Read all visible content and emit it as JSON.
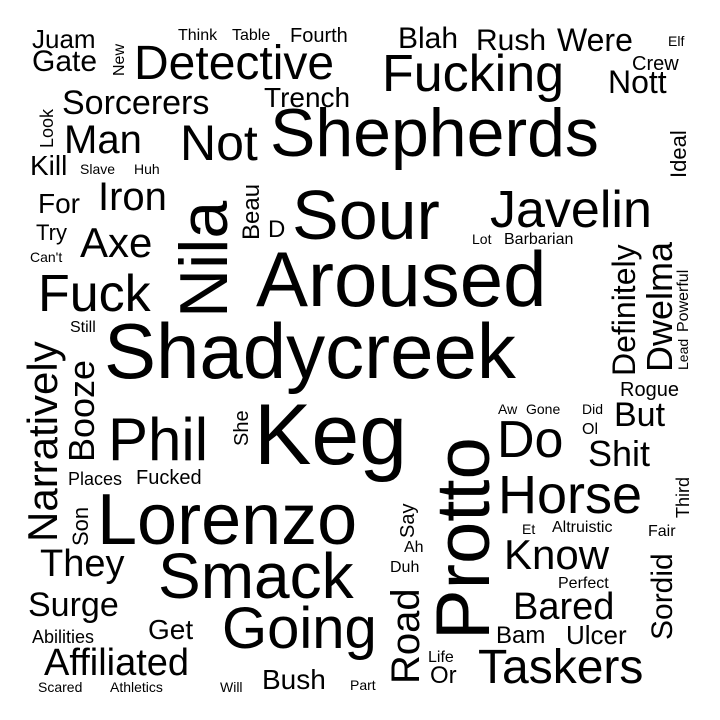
{
  "words": [
    {
      "text": "Shadycreek",
      "weight": 100
    },
    {
      "text": "Aroused",
      "weight": 94
    },
    {
      "text": "Keg",
      "weight": 92
    },
    {
      "text": "Nila",
      "weight": 90
    },
    {
      "text": "Protto",
      "weight": 90
    },
    {
      "text": "Lorenzo",
      "weight": 86
    },
    {
      "text": "Shepherds",
      "weight": 84
    },
    {
      "text": "Sour",
      "weight": 80
    },
    {
      "text": "Smack",
      "weight": 78
    },
    {
      "text": "Going",
      "weight": 70
    },
    {
      "text": "Phil",
      "weight": 68
    },
    {
      "text": "Horse",
      "weight": 62
    },
    {
      "text": "Fucking",
      "weight": 62
    },
    {
      "text": "Javelin",
      "weight": 60
    },
    {
      "text": "Fuck",
      "weight": 58
    },
    {
      "text": "Do",
      "weight": 58
    },
    {
      "text": "Detective",
      "weight": 56
    },
    {
      "text": "Not",
      "weight": 56
    },
    {
      "text": "Taskers",
      "weight": 52
    },
    {
      "text": "Narratively",
      "weight": 48
    },
    {
      "text": "Know",
      "weight": 46
    },
    {
      "text": "Affiliated",
      "weight": 44
    },
    {
      "text": "Iron",
      "weight": 44
    },
    {
      "text": "Axe",
      "weight": 44
    },
    {
      "text": "Road",
      "weight": 44
    },
    {
      "text": "Man",
      "weight": 42
    },
    {
      "text": "Bared",
      "weight": 40
    },
    {
      "text": "They",
      "weight": 40
    },
    {
      "text": "Booze",
      "weight": 40
    },
    {
      "text": "Shit",
      "weight": 40
    },
    {
      "text": "Dwelma",
      "weight": 38
    },
    {
      "text": "Surge",
      "weight": 36
    },
    {
      "text": "Definitely",
      "weight": 34
    },
    {
      "text": "Sorcerers",
      "weight": 34
    },
    {
      "text": "But",
      "weight": 34
    },
    {
      "text": "Nott",
      "weight": 32
    },
    {
      "text": "Were",
      "weight": 32
    },
    {
      "text": "Gate",
      "weight": 30
    },
    {
      "text": "Blah",
      "weight": 30
    },
    {
      "text": "Rush",
      "weight": 30
    },
    {
      "text": "Sordid",
      "weight": 30
    },
    {
      "text": "Get",
      "weight": 28
    },
    {
      "text": "Trench",
      "weight": 28
    },
    {
      "text": "Bush",
      "weight": 28
    },
    {
      "text": "Kill",
      "weight": 26
    },
    {
      "text": "For",
      "weight": 26
    },
    {
      "text": "Juam",
      "weight": 26
    },
    {
      "text": "Ideal",
      "weight": 24
    },
    {
      "text": "Beau",
      "weight": 24
    },
    {
      "text": "Ulcer",
      "weight": 24
    },
    {
      "text": "Bam",
      "weight": 22
    },
    {
      "text": "Son",
      "weight": 22
    },
    {
      "text": "D",
      "weight": 22
    },
    {
      "text": "Or",
      "weight": 22
    },
    {
      "text": "Fourth",
      "weight": 20
    },
    {
      "text": "Say",
      "weight": 20
    },
    {
      "text": "She",
      "weight": 20
    },
    {
      "text": "Rogue",
      "weight": 20
    },
    {
      "text": "Try",
      "weight": 20
    },
    {
      "text": "Fucked",
      "weight": 20
    },
    {
      "text": "Abilities",
      "weight": 20
    },
    {
      "text": "Look",
      "weight": 18
    },
    {
      "text": "Crew",
      "weight": 18
    },
    {
      "text": "Places",
      "weight": 18
    },
    {
      "text": "Third",
      "weight": 18
    },
    {
      "text": "Still",
      "weight": 16
    },
    {
      "text": "Altruistic",
      "weight": 16
    },
    {
      "text": "Perfect",
      "weight": 16
    },
    {
      "text": "Duh",
      "weight": 16
    },
    {
      "text": "Life",
      "weight": 16
    },
    {
      "text": "Barbarian",
      "weight": 16
    },
    {
      "text": "Powerful",
      "weight": 16
    },
    {
      "text": "Fair",
      "weight": 16
    },
    {
      "text": "Ah",
      "weight": 16
    },
    {
      "text": "Ol",
      "weight": 16
    },
    {
      "text": "Table",
      "weight": 16
    },
    {
      "text": "Think",
      "weight": 16
    },
    {
      "text": "New",
      "weight": 16
    },
    {
      "text": "Elf",
      "weight": 14
    },
    {
      "text": "Can't",
      "weight": 14
    },
    {
      "text": "Et",
      "weight": 14
    },
    {
      "text": "Athletics",
      "weight": 14
    },
    {
      "text": "Scared",
      "weight": 14
    },
    {
      "text": "Will",
      "weight": 14
    },
    {
      "text": "Part",
      "weight": 14
    },
    {
      "text": "Slave",
      "weight": 14
    },
    {
      "text": "Huh",
      "weight": 14
    },
    {
      "text": "Lot",
      "weight": 14
    },
    {
      "text": "Lead",
      "weight": 14
    },
    {
      "text": "Aw",
      "weight": 14
    },
    {
      "text": "Gone",
      "weight": 14
    },
    {
      "text": "Did",
      "weight": 14
    }
  ]
}
